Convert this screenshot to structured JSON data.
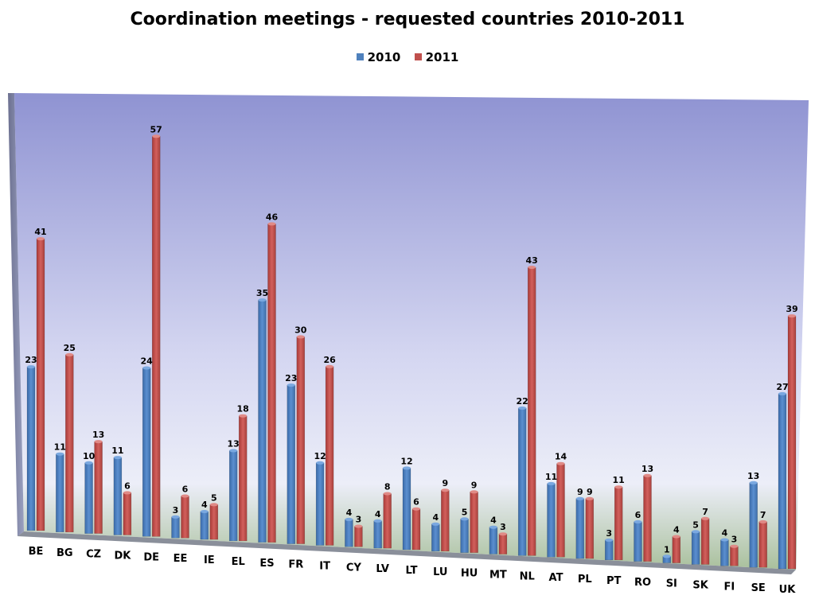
{
  "chart_data": {
    "type": "bar",
    "title": "Coordination meetings - requested countries 2010-2011",
    "xlabel": "",
    "ylabel": "",
    "ylim": [
      0,
      60
    ],
    "grid": false,
    "legend_position": "top",
    "categories": [
      "BE",
      "BG",
      "CZ",
      "DK",
      "DE",
      "EE",
      "IE",
      "EL",
      "ES",
      "FR",
      "IT",
      "CY",
      "LV",
      "LT",
      "LU",
      "HU",
      "MT",
      "NL",
      "AT",
      "PL",
      "PT",
      "RO",
      "SI",
      "SK",
      "FI",
      "SE",
      "UK"
    ],
    "series": [
      {
        "name": "2010",
        "color": "#4f81bd",
        "values": [
          23,
          11,
          10,
          11,
          24,
          3,
          4,
          13,
          35,
          23,
          12,
          4,
          4,
          12,
          4,
          5,
          4,
          22,
          11,
          9,
          3,
          6,
          1,
          5,
          4,
          13,
          27
        ]
      },
      {
        "name": "2011",
        "color": "#c0504d",
        "values": [
          41,
          25,
          13,
          6,
          57,
          6,
          5,
          18,
          46,
          30,
          26,
          3,
          8,
          6,
          9,
          9,
          3,
          43,
          14,
          9,
          11,
          13,
          4,
          7,
          3,
          7,
          39
        ]
      }
    ]
  }
}
